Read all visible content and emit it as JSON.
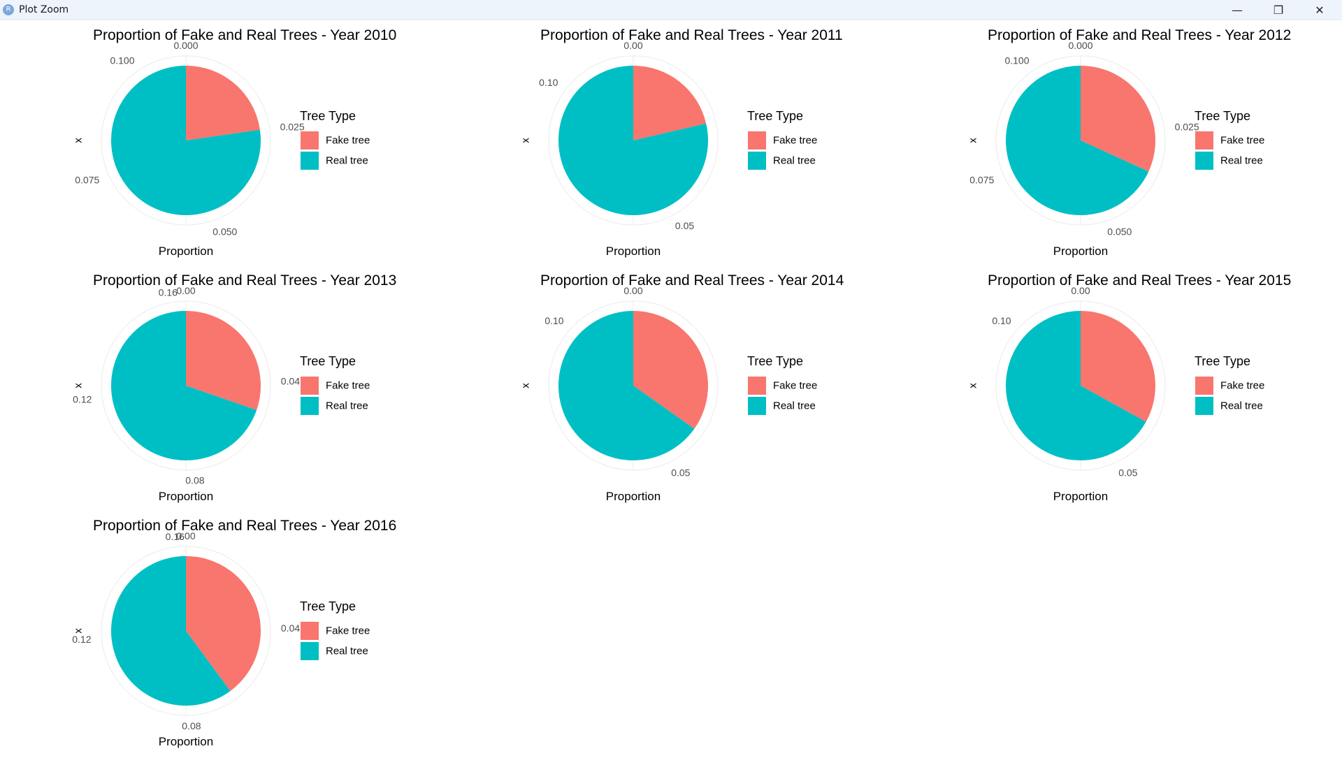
{
  "window": {
    "title": "Plot Zoom",
    "icon_letter": "R",
    "minimize_glyph": "—",
    "maximize_glyph": "❐",
    "close_glyph": "✕"
  },
  "colors": {
    "fake": "#F8766D",
    "real": "#00BFC4",
    "grid": "#EBEBEB",
    "tick_text": "#4D4D4D",
    "text": "#000000"
  },
  "chart_data": [
    {
      "type": "pie",
      "title": "Proportion of Fake and Real Trees - Year 2010",
      "xlabel": "Proportion",
      "ylabel": "x",
      "legend_title": "Tree Type",
      "legend_position": "right",
      "categories": [
        "Fake tree",
        "Real tree"
      ],
      "values": [
        0.025,
        0.085
      ],
      "ticks": [
        {
          "value": 0.0,
          "label": "0.000"
        },
        {
          "value": 0.025,
          "label": "0.025"
        },
        {
          "value": 0.05,
          "label": "0.050"
        },
        {
          "value": 0.075,
          "label": "0.075"
        },
        {
          "value": 0.1,
          "label": "0.100"
        }
      ]
    },
    {
      "type": "pie",
      "title": "Proportion of Fake and Real Trees - Year 2011",
      "xlabel": "Proportion",
      "ylabel": "x",
      "legend_title": "Tree Type",
      "legend_position": "right",
      "categories": [
        "Fake tree",
        "Real tree"
      ],
      "values": [
        0.025,
        0.092
      ],
      "ticks": [
        {
          "value": 0.0,
          "label": "0.00"
        },
        {
          "value": 0.05,
          "label": "0.05"
        },
        {
          "value": 0.1,
          "label": "0.10"
        }
      ]
    },
    {
      "type": "pie",
      "title": "Proportion of Fake and Real Trees - Year 2012",
      "xlabel": "Proportion",
      "ylabel": "x",
      "legend_title": "Tree Type",
      "legend_position": "right",
      "categories": [
        "Fake tree",
        "Real tree"
      ],
      "values": [
        0.035,
        0.075
      ],
      "ticks": [
        {
          "value": 0.0,
          "label": "0.000"
        },
        {
          "value": 0.025,
          "label": "0.025"
        },
        {
          "value": 0.05,
          "label": "0.050"
        },
        {
          "value": 0.075,
          "label": "0.075"
        },
        {
          "value": 0.1,
          "label": "0.100"
        }
      ]
    },
    {
      "type": "pie",
      "title": "Proportion of Fake and Real Trees - Year 2013",
      "xlabel": "Proportion",
      "ylabel": "x",
      "legend_title": "Tree Type",
      "legend_position": "right",
      "categories": [
        "Fake tree",
        "Real tree"
      ],
      "values": [
        0.05,
        0.115
      ],
      "ticks": [
        {
          "value": 0.0,
          "label": "0.00"
        },
        {
          "value": 0.04,
          "label": "0.04"
        },
        {
          "value": 0.08,
          "label": "0.08"
        },
        {
          "value": 0.12,
          "label": "0.12"
        },
        {
          "value": 0.16,
          "label": "0.16"
        }
      ]
    },
    {
      "type": "pie",
      "title": "Proportion of Fake and Real Trees - Year 2014",
      "xlabel": "Proportion",
      "ylabel": "x",
      "legend_title": "Tree Type",
      "legend_position": "right",
      "categories": [
        "Fake tree",
        "Real tree"
      ],
      "values": [
        0.04,
        0.075
      ],
      "ticks": [
        {
          "value": 0.0,
          "label": "0.00"
        },
        {
          "value": 0.05,
          "label": "0.05"
        },
        {
          "value": 0.1,
          "label": "0.10"
        }
      ]
    },
    {
      "type": "pie",
      "title": "Proportion of Fake and Real Trees - Year 2015",
      "xlabel": "Proportion",
      "ylabel": "x",
      "legend_title": "Tree Type",
      "legend_position": "right",
      "categories": [
        "Fake tree",
        "Real tree"
      ],
      "values": [
        0.038,
        0.077
      ],
      "ticks": [
        {
          "value": 0.0,
          "label": "0.00"
        },
        {
          "value": 0.05,
          "label": "0.05"
        },
        {
          "value": 0.1,
          "label": "0.10"
        }
      ]
    },
    {
      "type": "pie",
      "title": "Proportion of Fake and Real Trees - Year 2016",
      "xlabel": "Proportion",
      "ylabel": "x",
      "legend_title": "Tree Type",
      "legend_position": "right",
      "categories": [
        "Fake tree",
        "Real tree"
      ],
      "values": [
        0.065,
        0.098
      ],
      "ticks": [
        {
          "value": 0.0,
          "label": "0.00"
        },
        {
          "value": 0.04,
          "label": "0.04"
        },
        {
          "value": 0.08,
          "label": "0.08"
        },
        {
          "value": 0.12,
          "label": "0.12"
        },
        {
          "value": 0.16,
          "label": "0.16"
        }
      ]
    }
  ]
}
